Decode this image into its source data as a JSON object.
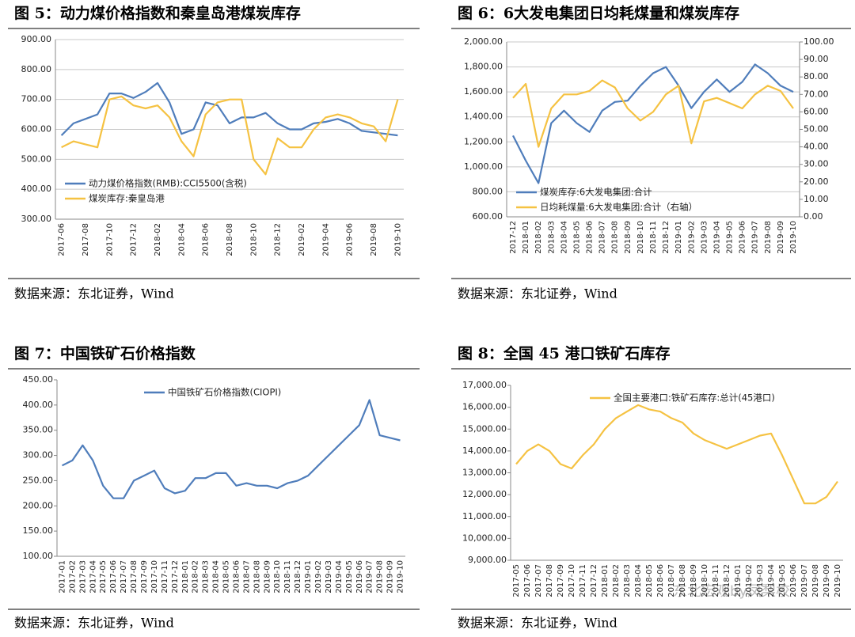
{
  "chart_data": [
    {
      "type": "line",
      "title": "图 5：动力煤价格指数和秦皇岛港煤炭库存",
      "source": "数据来源：东北证券，Wind",
      "categories": [
        "2017-06",
        null,
        "2017-08",
        null,
        "2017-10",
        null,
        "2017-12",
        null,
        "2018-02",
        null,
        "2018-04",
        null,
        "2018-06",
        null,
        "2018-08",
        null,
        "2018-10",
        null,
        "2018-12",
        null,
        "2019-02",
        null,
        "2019-04",
        null,
        "2019-06",
        null,
        "2019-08",
        null,
        "2019-10"
      ],
      "series": [
        {
          "name": "动力煤价格指数(RMB):CCI5500(含税)",
          "color": "#4f7dbb",
          "values": [
            580,
            620,
            635,
            650,
            720,
            720,
            705,
            725,
            755,
            690,
            585,
            600,
            690,
            680,
            620,
            640,
            640,
            655,
            620,
            600,
            600,
            620,
            625,
            635,
            620,
            595,
            590,
            585,
            580
          ]
        },
        {
          "name": "煤炭库存:秦皇岛港",
          "color": "#f5c242",
          "values": [
            540,
            560,
            550,
            540,
            700,
            710,
            680,
            670,
            680,
            640,
            560,
            510,
            650,
            690,
            700,
            700,
            500,
            450,
            570,
            540,
            540,
            600,
            640,
            650,
            640,
            620,
            610,
            560,
            700
          ]
        }
      ],
      "ylim": [
        300,
        900
      ],
      "yticks": [
        {
          "value": 300,
          "label": "300.00"
        },
        {
          "value": 400,
          "label": "400.00"
        },
        {
          "value": 500,
          "label": "500.00"
        },
        {
          "value": 600,
          "label": "600.00"
        },
        {
          "value": 700,
          "label": "700.00"
        },
        {
          "value": 800,
          "label": "800.00"
        },
        {
          "value": 900,
          "label": "900.00"
        }
      ],
      "grid": true,
      "legend": "lower left"
    },
    {
      "type": "line",
      "title": "图 6：6大发电集团日均耗煤量和煤炭库存",
      "source": "数据来源：东北证券，Wind",
      "categories": [
        "2017-12",
        "2018-01",
        "2018-02",
        "2018-03",
        "2018-04",
        "2018-05",
        "2018-06",
        "2018-07",
        "2018-08",
        "2018-09",
        "2018-10",
        "2018-11",
        "2018-12",
        "2019-01",
        "2019-02",
        "2019-03",
        "2019-04",
        "2019-05",
        "2019-06",
        "2019-07",
        "2019-08",
        "2019-09",
        "2019-10"
      ],
      "series": [
        {
          "name": "煤炭库存:6大发电集团:合计",
          "color": "#4f7dbb",
          "values": [
            1250,
            1050,
            870,
            1350,
            1450,
            1350,
            1280,
            1450,
            1520,
            1530,
            1650,
            1750,
            1800,
            1650,
            1470,
            1600,
            1700,
            1600,
            1680,
            1820,
            1750,
            1650,
            1600
          ]
        },
        {
          "name": "日均耗煤量:6大发电集团:合计（右轴）",
          "color": "#f5c242",
          "axis": "y2",
          "values": [
            68,
            76,
            40,
            62,
            70,
            70,
            72,
            78,
            74,
            62,
            55,
            60,
            70,
            75,
            42,
            66,
            68,
            65,
            62,
            70,
            75,
            72,
            62
          ]
        }
      ],
      "ylim": [
        600,
        2000
      ],
      "yticks": [
        {
          "value": 600,
          "label": "600.00"
        },
        {
          "value": 800,
          "label": "800.00"
        },
        {
          "value": 1000,
          "label": "1,000.00"
        },
        {
          "value": 1200,
          "label": "1,200.00"
        },
        {
          "value": 1400,
          "label": "1,400.00"
        },
        {
          "value": 1600,
          "label": "1,600.00"
        },
        {
          "value": 1800,
          "label": "1,800.00"
        },
        {
          "value": 2000,
          "label": "2,000.00"
        }
      ],
      "y2lim": [
        0,
        100
      ],
      "y2ticks": [
        {
          "value": 0,
          "label": "0.00"
        },
        {
          "value": 10,
          "label": "10.00"
        },
        {
          "value": 20,
          "label": "20.00"
        },
        {
          "value": 30,
          "label": "30.00"
        },
        {
          "value": 40,
          "label": "40.00"
        },
        {
          "value": 50,
          "label": "50.00"
        },
        {
          "value": 60,
          "label": "60.00"
        },
        {
          "value": 70,
          "label": "70.00"
        },
        {
          "value": 80,
          "label": "80.00"
        },
        {
          "value": 90,
          "label": "90.00"
        },
        {
          "value": 100,
          "label": "100.00"
        }
      ],
      "grid": true,
      "legend": "lower left"
    },
    {
      "type": "line",
      "title": "图 7：中国铁矿石价格指数",
      "source": "数据来源：东北证券，Wind",
      "categories": [
        "2017-01",
        "2017-02",
        "2017-03",
        "2017-04",
        "2017-05",
        "2017-06",
        "2017-07",
        "2017-08",
        "2017-09",
        "2017-10",
        "2017-11",
        "2017-12",
        "2018-01",
        "2018-02",
        "2018-03",
        "2018-04",
        "2018-05",
        "2018-06",
        "2018-07",
        "2018-08",
        "2018-09",
        "2018-10",
        "2018-11",
        "2018-12",
        "2019-01",
        "2019-02",
        "2019-03",
        "2019-04",
        "2019-05",
        "2019-06",
        "2019-07",
        "2019-08",
        "2019-09",
        "2019-10"
      ],
      "series": [
        {
          "name": "中国铁矿石价格指数(CIOPI)",
          "color": "#4f7dbb",
          "values": [
            280,
            290,
            320,
            290,
            240,
            215,
            215,
            250,
            260,
            270,
            235,
            225,
            230,
            255,
            255,
            265,
            265,
            240,
            245,
            240,
            240,
            235,
            245,
            250,
            260,
            280,
            300,
            320,
            340,
            360,
            410,
            340,
            335,
            330
          ]
        }
      ],
      "ylim": [
        100,
        450
      ],
      "yticks": [
        {
          "value": 100,
          "label": "100.00"
        },
        {
          "value": 150,
          "label": "150.00"
        },
        {
          "value": 200,
          "label": "200.00"
        },
        {
          "value": 250,
          "label": "250.00"
        },
        {
          "value": 300,
          "label": "300.00"
        },
        {
          "value": 350,
          "label": "350.00"
        },
        {
          "value": 400,
          "label": "400.00"
        },
        {
          "value": 450,
          "label": "450.00"
        }
      ],
      "grid": false,
      "legend": "upper center"
    },
    {
      "type": "line",
      "title": "图 8：全国 45 港口铁矿石库存",
      "source": "数据来源：东北证券，Wind",
      "categories": [
        "2017-05",
        "2017-06",
        "2017-07",
        "2017-08",
        "2017-09",
        "2017-10",
        "2017-11",
        "2017-12",
        "2018-01",
        "2018-02",
        "2018-03",
        "2018-04",
        "2018-05",
        "2018-06",
        "2018-07",
        "2018-08",
        "2018-09",
        "2018-10",
        "2018-11",
        "2018-12",
        "2019-01",
        "2019-02",
        "2019-03",
        "2019-04",
        "2019-05",
        "2019-06",
        "2019-07",
        "2019-08",
        "2019-09",
        "2019-10"
      ],
      "series": [
        {
          "name": "全国主要港口:铁矿石库存:总计(45港口)",
          "color": "#f5c242",
          "values": [
            13400,
            14000,
            14300,
            14000,
            13400,
            13200,
            13800,
            14300,
            15000,
            15500,
            15800,
            16100,
            15900,
            15800,
            15500,
            15300,
            14800,
            14500,
            14300,
            14100,
            14300,
            14500,
            14700,
            14800,
            13800,
            12700,
            11600,
            11600,
            11900,
            12600
          ]
        }
      ],
      "ylim": [
        9000,
        17000
      ],
      "yticks": [
        {
          "value": 9000,
          "label": "9,000.00"
        },
        {
          "value": 10000,
          "label": "10,000.00"
        },
        {
          "value": 11000,
          "label": "11,000.00"
        },
        {
          "value": 12000,
          "label": "12,000.00"
        },
        {
          "value": 13000,
          "label": "13,000.00"
        },
        {
          "value": 14000,
          "label": "14,000.00"
        },
        {
          "value": 15000,
          "label": "15,000.00"
        },
        {
          "value": 16000,
          "label": "16,000.00"
        },
        {
          "value": 17000,
          "label": "17,000.00"
        }
      ],
      "grid": false,
      "legend": "upper center"
    }
  ],
  "watermark": "东北宏观by凤梨校"
}
